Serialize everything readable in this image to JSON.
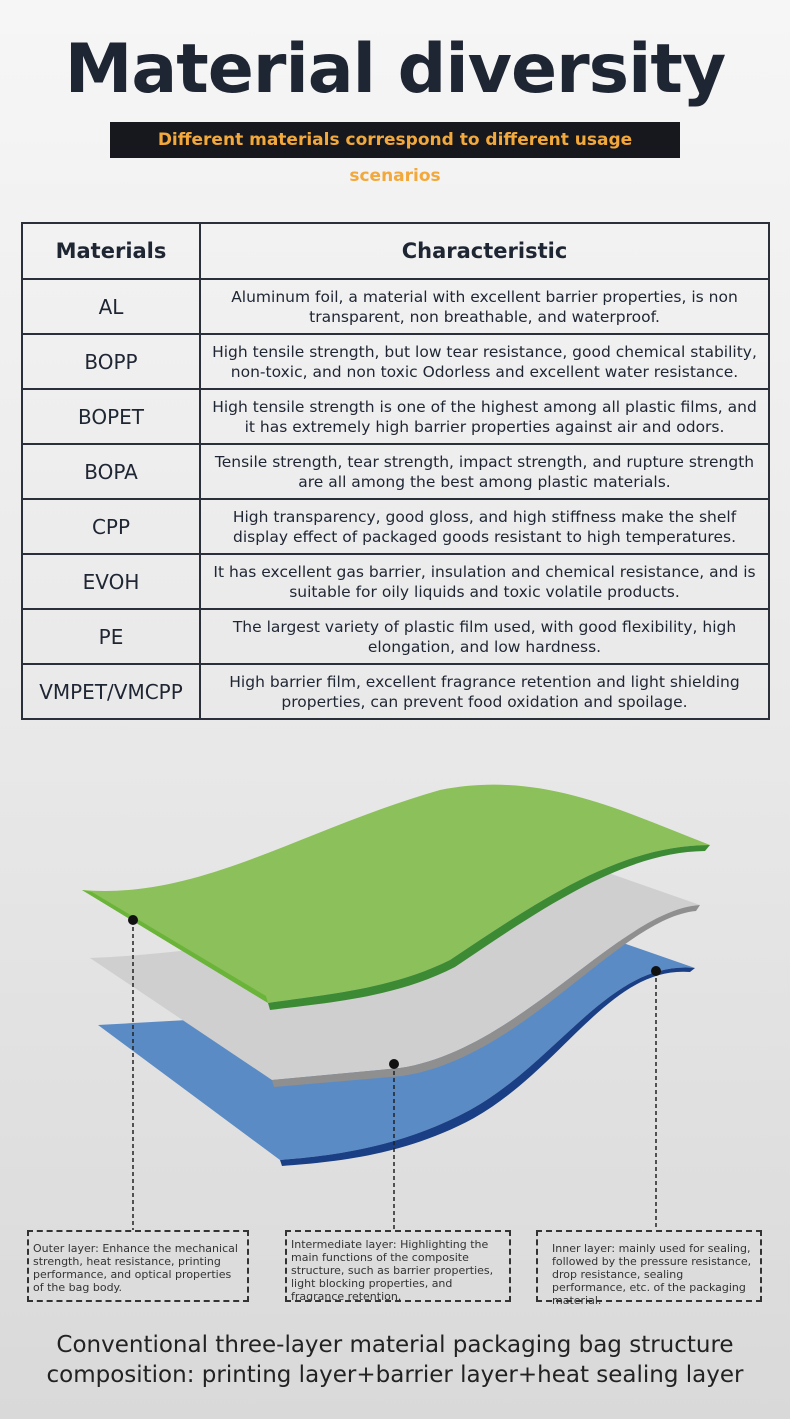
{
  "header": {
    "title": "Material diversity",
    "subtitle": "Different materials correspond to different usage scenarios"
  },
  "table": {
    "columns": [
      "Materials",
      "Characteristic"
    ],
    "rows": [
      [
        "AL",
        "Aluminum foil, a material with excellent barrier properties, is non transparent, non breathable, and waterproof."
      ],
      [
        "BOPP",
        "High tensile strength, but low tear resistance, good chemical stability, non-toxic, and non toxic Odorless and excellent water resistance."
      ],
      [
        "BOPET",
        "High tensile strength is one of the highest among all plastic films, and it has extremely high barrier properties against air and odors."
      ],
      [
        "BOPA",
        "Tensile strength, tear strength, impact strength, and rupture strength are all among the best among plastic materials."
      ],
      [
        "CPP",
        "High transparency, good gloss, and high stiffness make the shelf display effect of packaged goods resistant to high temperatures."
      ],
      [
        "EVOH",
        "It has excellent gas barrier, insulation and chemical resistance, and is suitable for oily liquids and toxic volatile products."
      ],
      [
        "PE",
        "The largest variety of plastic film used, with good flexibility, high elongation, and low hardness."
      ],
      [
        "VMPET/VMCPP",
        "High barrier film, excellent fragrance retention and light shielding properties, can prevent food oxidation and spoilage."
      ]
    ]
  },
  "layers": [
    {
      "label": "Outer layer: Enhance the mechanical strength, heat resistance, printing performance, and optical properties of the bag body."
    },
    {
      "label": "Intermediate layer: Highlighting the main functions of the composite structure, such as barrier properties, light blocking properties, and fragrance retention."
    },
    {
      "label": "Inner layer: mainly used for sealing, followed by the pressure resistance, drop resistance, sealing performance, etc. of the packaging material."
    }
  ],
  "caption": [
    "Conventional three-layer material packaging bag structure",
    "composition: printing layer+barrier layer+heat sealing layer"
  ]
}
